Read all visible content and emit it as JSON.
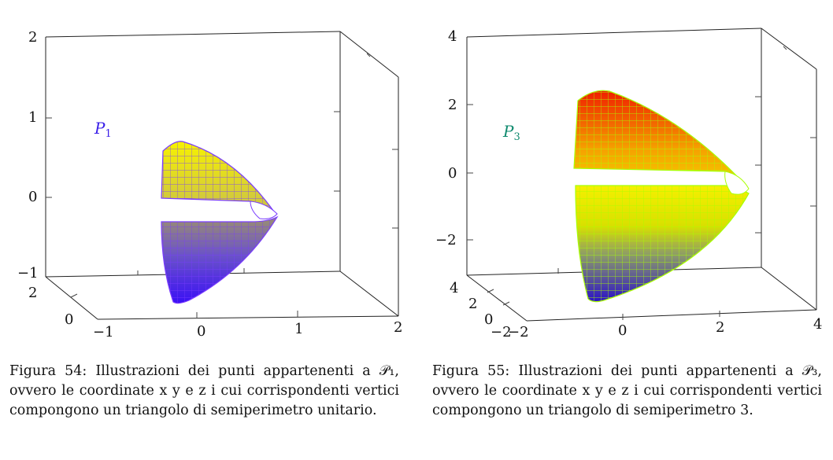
{
  "figures": [
    {
      "surface_label": "P",
      "surface_label_sub": "1",
      "label_color": "#3a1fe8",
      "y_ticks": [
        "2",
        "1",
        "0",
        "−1"
      ],
      "x_ticks": [
        "−1",
        "0",
        "1",
        "2"
      ],
      "depth_ticks": [
        "2",
        "0"
      ],
      "colors": {
        "top": "#f5f000",
        "bottom": "#3a10f5",
        "edge": "#7a3cff"
      },
      "caption": {
        "prefix": "Figura 54:",
        "text": "Illustrazioni dei punti appartenenti a 𝒫₁, ovvero le coordinate x y e z i cui corrispondenti vertici compongono un triangolo di semiperimetro unitario."
      }
    },
    {
      "surface_label": "P",
      "surface_label_sub": "3",
      "label_color": "#0f8a6e",
      "y_ticks": [
        "4",
        "2",
        "0",
        "−2"
      ],
      "x_ticks": [
        "−2",
        "0",
        "2",
        "4"
      ],
      "depth_ticks": [
        "4",
        "2",
        "0",
        "−2"
      ],
      "colors": {
        "top": "#f01e00",
        "mid": "#f5f000",
        "bottom": "#2a10c8",
        "edge": "#a8ff00"
      },
      "caption": {
        "prefix": "Figura 55:",
        "text": "Illustrazioni dei punti appartenenti a 𝒫₃, ovvero le coordinate x y e z i cui corrispondenti vertici compongono un triangolo di semiperimetro 3."
      }
    }
  ]
}
